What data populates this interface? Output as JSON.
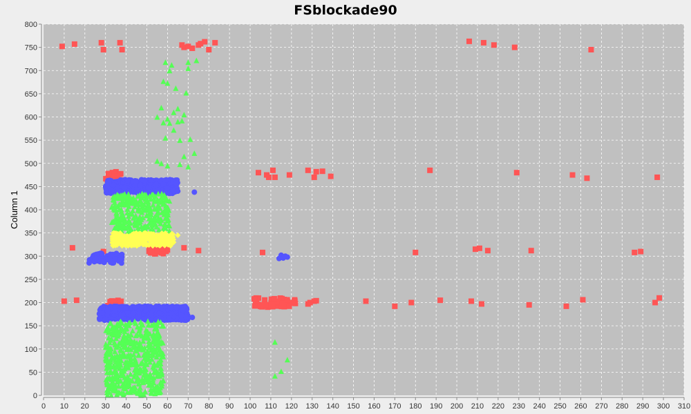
{
  "chart_data": {
    "type": "scatter",
    "title": "FSblockade90",
    "xlabel": "",
    "ylabel": "Column 1",
    "xlim": [
      0,
      310
    ],
    "ylim": [
      0,
      800
    ],
    "x_ticks": [
      0,
      10,
      20,
      30,
      40,
      50,
      60,
      70,
      80,
      90,
      100,
      110,
      120,
      130,
      140,
      150,
      160,
      170,
      180,
      190,
      200,
      210,
      220,
      230,
      240,
      250,
      260,
      270,
      280,
      290,
      300,
      310
    ],
    "y_ticks": [
      0,
      50,
      100,
      150,
      200,
      250,
      300,
      350,
      400,
      450,
      500,
      550,
      600,
      650,
      700,
      750,
      800
    ],
    "grid": true,
    "legend": "none",
    "plot_background": "#c0c0c0",
    "series": [
      {
        "marker": "square",
        "color": "#ff5555",
        "clusters": [
          {
            "x_range": [
              30,
              38
            ],
            "y_range": [
              448,
              482
            ],
            "count": 40
          },
          {
            "x_range": [
              51,
              60
            ],
            "y_range": [
              305,
              322
            ],
            "count": 60
          },
          {
            "x_range": [
              31,
              38
            ],
            "y_range": [
              172,
              205
            ],
            "count": 30
          },
          {
            "x_range": [
              102,
              122
            ],
            "y_range": [
              190,
              210
            ],
            "count": 60
          }
        ],
        "points": [
          [
            9,
            752
          ],
          [
            15,
            757
          ],
          [
            28,
            760
          ],
          [
            29,
            745
          ],
          [
            37,
            760
          ],
          [
            38,
            745
          ],
          [
            67,
            755
          ],
          [
            68,
            750
          ],
          [
            70,
            752
          ],
          [
            72,
            748
          ],
          [
            75,
            755
          ],
          [
            76,
            758
          ],
          [
            78,
            762
          ],
          [
            80,
            745
          ],
          [
            83,
            760
          ],
          [
            206,
            763
          ],
          [
            213,
            760
          ],
          [
            218,
            755
          ],
          [
            228,
            750
          ],
          [
            265,
            745
          ],
          [
            104,
            480
          ],
          [
            108,
            475
          ],
          [
            109,
            470
          ],
          [
            111,
            485
          ],
          [
            112,
            470
          ],
          [
            119,
            475
          ],
          [
            128,
            485
          ],
          [
            131,
            470
          ],
          [
            132,
            482
          ],
          [
            135,
            483
          ],
          [
            139,
            472
          ],
          [
            187,
            485
          ],
          [
            229,
            480
          ],
          [
            256,
            475
          ],
          [
            263,
            468
          ],
          [
            297,
            470
          ],
          [
            14,
            318
          ],
          [
            29,
            310
          ],
          [
            68,
            318
          ],
          [
            75,
            312
          ],
          [
            106,
            308
          ],
          [
            180,
            308
          ],
          [
            209,
            315
          ],
          [
            211,
            317
          ],
          [
            215,
            312
          ],
          [
            236,
            312
          ],
          [
            286,
            308
          ],
          [
            289,
            310
          ],
          [
            10,
            203
          ],
          [
            16,
            205
          ],
          [
            102,
            208
          ],
          [
            128,
            197
          ],
          [
            129,
            200
          ],
          [
            131,
            203
          ],
          [
            132,
            204
          ],
          [
            156,
            203
          ],
          [
            170,
            192
          ],
          [
            178,
            200
          ],
          [
            192,
            205
          ],
          [
            207,
            203
          ],
          [
            212,
            197
          ],
          [
            235,
            195
          ],
          [
            253,
            192
          ],
          [
            261,
            206
          ],
          [
            296,
            200
          ],
          [
            298,
            210
          ]
        ]
      },
      {
        "marker": "circle",
        "color": "#5555ff",
        "clusters": [
          {
            "x_range": [
              30,
              65
            ],
            "y_range": [
              435,
              465
            ],
            "count": 500
          },
          {
            "x_range": [
              22,
              38
            ],
            "y_range": [
              285,
              308
            ],
            "count": 70
          },
          {
            "x_range": [
              27,
              70
            ],
            "y_range": [
              162,
              192
            ],
            "count": 700
          }
        ],
        "points": [
          [
            73,
            438
          ],
          [
            115,
            302
          ],
          [
            116,
            296
          ],
          [
            117,
            300
          ],
          [
            118,
            298
          ],
          [
            114,
            295
          ],
          [
            72,
            168
          ]
        ]
      },
      {
        "marker": "triangle",
        "color": "#55ff55",
        "clusters": [
          {
            "x_range": [
              33,
              61
            ],
            "y_range": [
              350,
              435
            ],
            "count": 300
          },
          {
            "x_range": [
              30,
              58
            ],
            "y_range": [
              0,
              160
            ],
            "count": 500
          }
        ],
        "points": [
          [
            59,
            718
          ],
          [
            62,
            712
          ],
          [
            61,
            700
          ],
          [
            70,
            718
          ],
          [
            74,
            722
          ],
          [
            70,
            705
          ],
          [
            58,
            677
          ],
          [
            60,
            673
          ],
          [
            64,
            662
          ],
          [
            69,
            652
          ],
          [
            57,
            620
          ],
          [
            65,
            618
          ],
          [
            68,
            605
          ],
          [
            55,
            600
          ],
          [
            60,
            596
          ],
          [
            63,
            610
          ],
          [
            58,
            588
          ],
          [
            61,
            587
          ],
          [
            65,
            590
          ],
          [
            67,
            592
          ],
          [
            63,
            572
          ],
          [
            59,
            555
          ],
          [
            66,
            550
          ],
          [
            71,
            552
          ],
          [
            73,
            522
          ],
          [
            55,
            505
          ],
          [
            57,
            500
          ],
          [
            60,
            495
          ],
          [
            66,
            498
          ],
          [
            70,
            493
          ],
          [
            68,
            515
          ],
          [
            112,
            115
          ],
          [
            112,
            42
          ],
          [
            115,
            52
          ],
          [
            118,
            77
          ],
          [
            40,
            32
          ],
          [
            48,
            28
          ],
          [
            52,
            42
          ],
          [
            45,
            60
          ],
          [
            55,
            65
          ]
        ]
      },
      {
        "marker": "diamond",
        "color": "#ffff55",
        "clusters": [
          {
            "x_range": [
              33,
              63
            ],
            "y_range": [
              322,
              350
            ],
            "count": 300
          }
        ],
        "points": [
          [
            65,
            345
          ],
          [
            63,
            330
          ]
        ]
      }
    ]
  }
}
